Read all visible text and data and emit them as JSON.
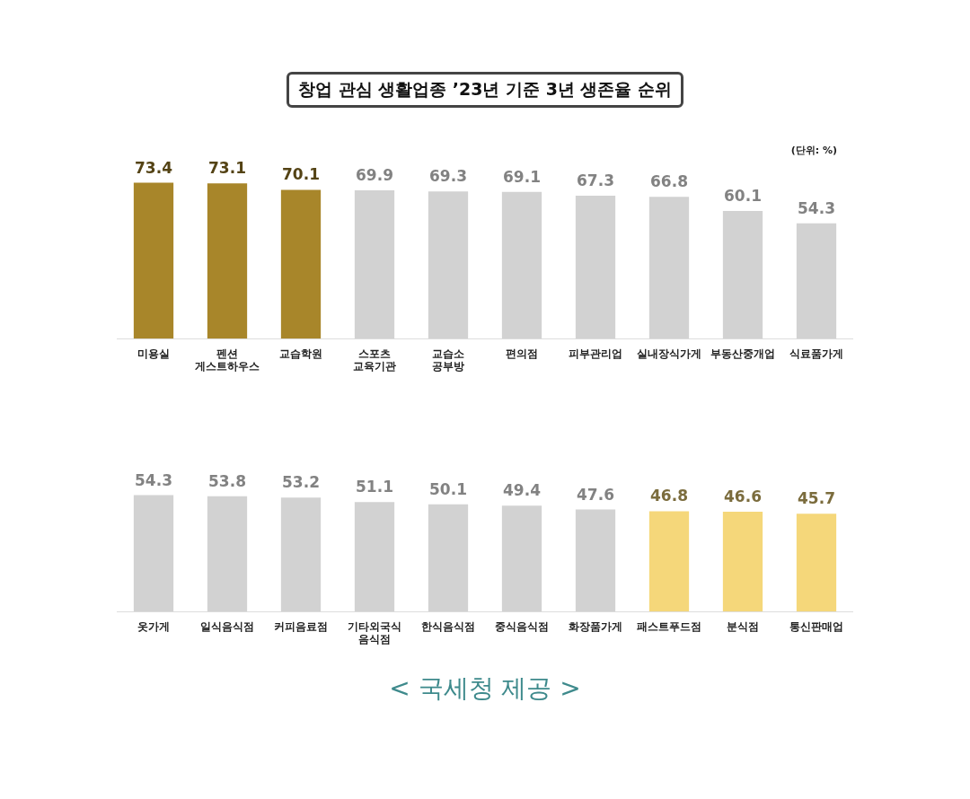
{
  "chart_data": [
    {
      "type": "bar",
      "title": "창업 관심 생활업종 ’23년 기준 3년 생존율 순위",
      "annotations": [
        "(단위: %)"
      ],
      "categories": [
        "미용실",
        "펜션 게스트하우스",
        "교습학원",
        "스포츠 교육기관",
        "교습소 공부방",
        "편의점",
        "피부관리업",
        "실내장식가게",
        "부동산중개업",
        "식료품가게"
      ],
      "values": [
        73.4,
        73.1,
        70.1,
        69.9,
        69.3,
        69.1,
        67.3,
        66.8,
        60.1,
        54.3
      ],
      "colors": [
        "#a8862a",
        "#a8862a",
        "#a8862a",
        "#d2d2d2",
        "#d2d2d2",
        "#d2d2d2",
        "#d2d2d2",
        "#d2d2d2",
        "#d2d2d2",
        "#d2d2d2"
      ],
      "tick_labels": "x",
      "data_labels": true
    },
    {
      "type": "bar",
      "annotations": [
        "< 국세청 제공 >"
      ],
      "categories": [
        "옷가게",
        "일식음식점",
        "커피음료점",
        "기타외국식 음식점",
        "한식음식점",
        "중식음식점",
        "화장품가게",
        "패스트푸드점",
        "분식점",
        "통신판매업"
      ],
      "values": [
        54.3,
        53.8,
        53.2,
        51.1,
        50.1,
        49.4,
        47.6,
        46.8,
        46.6,
        45.7
      ],
      "colors": [
        "#d2d2d2",
        "#d2d2d2",
        "#d2d2d2",
        "#d2d2d2",
        "#d2d2d2",
        "#d2d2d2",
        "#d2d2d2",
        "#f5d77a",
        "#f5d77a",
        "#f5d77a"
      ],
      "tick_labels": "x",
      "data_labels": true
    }
  ]
}
